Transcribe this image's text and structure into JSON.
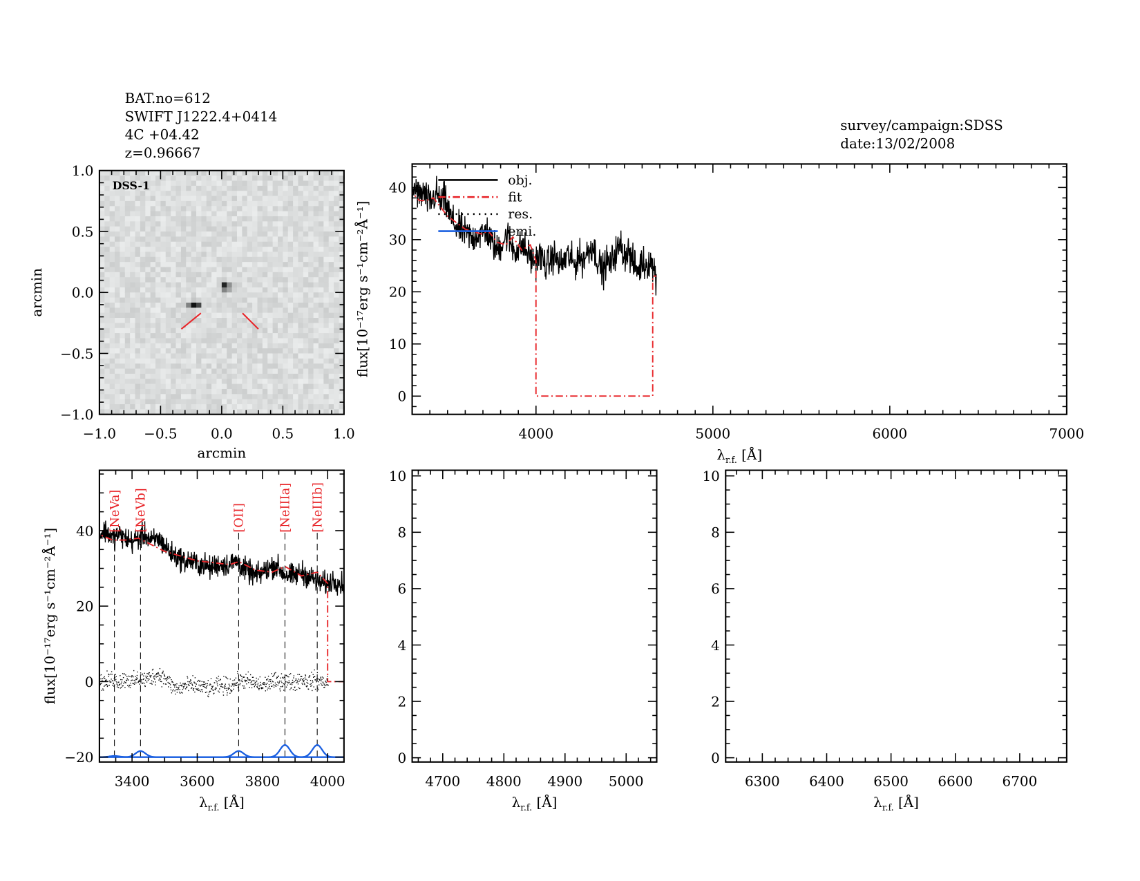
{
  "header": {
    "left_lines": [
      "BAT.no=612",
      "SWIFT J1222.4+0414",
      "4C +04.42",
      "z=0.96667"
    ],
    "right_lines": [
      "survey/campaign:SDSS",
      "date:13/02/2008"
    ]
  },
  "colors": {
    "obj": "#000000",
    "fit": "#e8262a",
    "res": "#000000",
    "emi": "#1a5fe0",
    "marker": "#e8262a"
  },
  "chart_data": [
    {
      "id": "image",
      "type": "heatmap",
      "inset_label": "DSS-1",
      "xlabel": "arcmin",
      "ylabel": "arcmin",
      "xlim": [
        -1.0,
        1.0
      ],
      "ylim": [
        -1.0,
        1.0
      ],
      "xticks": [
        "-1.0",
        "-0.5",
        "0.0",
        "0.5",
        "1.0"
      ],
      "yticks": [
        "-1.0",
        "-0.5",
        "0.0",
        "0.5",
        "1.0"
      ],
      "colormap": "grayscale",
      "sources": [
        {
          "x": 0.03,
          "y": 0.05,
          "intensity": "bright"
        },
        {
          "x": -0.22,
          "y": -0.1,
          "intensity": "faint"
        }
      ],
      "markers": [
        [
          [
            -0.33,
            -0.3
          ],
          [
            -0.17,
            -0.17
          ]
        ],
        [
          [
            0.17,
            -0.17
          ],
          [
            0.3,
            -0.3
          ]
        ]
      ]
    },
    {
      "id": "full-spectrum",
      "type": "line",
      "xlabel": {
        "main": "λ",
        "sub": "r.f.",
        "unit": "[Å]"
      },
      "ylabel": "flux[10⁻¹⁷erg s⁻¹cm⁻²Å⁻¹]",
      "xlim": [
        3300,
        7000
      ],
      "ylim": [
        -3.5,
        44.5
      ],
      "xticks": [
        4000,
        5000,
        6000,
        7000
      ],
      "yticks": [
        0,
        10,
        20,
        30,
        40
      ],
      "legend": {
        "position": "top-left",
        "entries": [
          "obj.",
          "fit",
          "res.",
          "emi."
        ]
      },
      "obj": {
        "x_start": 3300,
        "x_step": 20,
        "y": [
          39,
          40,
          38,
          39,
          38,
          37,
          38,
          39,
          37,
          38,
          36,
          34,
          33,
          32,
          32,
          31,
          31,
          30,
          31,
          31,
          31,
          32,
          30,
          29,
          28,
          29,
          30,
          31,
          29,
          28,
          28,
          29,
          28,
          27,
          26,
          26,
          27,
          26,
          25,
          26,
          27,
          26,
          25,
          26,
          27,
          26,
          25,
          27,
          26,
          27,
          28,
          29,
          27,
          25,
          24,
          26,
          25,
          27,
          28,
          29,
          27,
          28,
          26,
          25,
          24,
          26,
          25,
          26,
          25,
          23
        ]
      },
      "fit": [
        [
          3300,
          10
        ],
        [
          3300,
          39
        ],
        [
          3340,
          37.5
        ],
        [
          3380,
          37.5
        ],
        [
          3420,
          38
        ],
        [
          3500,
          34.5
        ],
        [
          3600,
          32
        ],
        [
          3700,
          31
        ],
        [
          3727,
          31.8
        ],
        [
          3780,
          29.5
        ],
        [
          3830,
          29
        ],
        [
          3869,
          30.5
        ],
        [
          3920,
          28
        ],
        [
          3968,
          29
        ],
        [
          4000,
          26
        ],
        [
          4000,
          0
        ],
        [
          4660,
          0
        ],
        [
          4660,
          23
        ],
        [
          4680,
          23
        ]
      ]
    },
    {
      "id": "zoom-3300-4050",
      "type": "line",
      "xlabel": {
        "main": "λ",
        "sub": "r.f.",
        "unit": "[Å]"
      },
      "ylabel": "flux[10⁻¹⁷erg s⁻¹cm⁻²Å⁻¹]",
      "xlim": [
        3300,
        4050
      ],
      "ylim": [
        -21.3,
        56
      ],
      "xticks": [
        3400,
        3600,
        3800,
        4000
      ],
      "yticks": [
        -20,
        0,
        20,
        40
      ],
      "lines": [
        {
          "label": "[NeVa]",
          "wavelength": 3346,
          "emi_amp": 0.3
        },
        {
          "label": "[NeVb]",
          "wavelength": 3426,
          "emi_amp": 1.6
        },
        {
          "label": "[OII]",
          "wavelength": 3727,
          "emi_amp": 1.6
        },
        {
          "label": "[NeIIIa]",
          "wavelength": 3869,
          "emi_amp": 3.2
        },
        {
          "label": "[NeIIIb]",
          "wavelength": 3968,
          "emi_amp": 3.2
        }
      ],
      "emi_baseline": -20,
      "emi_sigma_A": 15,
      "residual": {
        "x_start": 3300,
        "x_step": 20,
        "y": [
          0,
          0,
          1,
          0,
          1,
          0,
          1,
          0.5,
          1.5,
          2,
          1,
          -1,
          -2,
          -1,
          -1,
          -1,
          -1.5,
          -2,
          -1,
          -1,
          -1,
          0,
          0.5,
          0,
          -0.5,
          -1,
          0,
          0,
          0.5,
          0,
          0,
          1,
          0,
          0.5,
          0,
          0
        ]
      },
      "fit_extra": [
        [
          4000,
          0
        ],
        [
          4050,
          0
        ]
      ]
    },
    {
      "id": "zoom-4650-5050",
      "type": "line",
      "xlabel": {
        "main": "λ",
        "sub": "r.f.",
        "unit": "[Å]"
      },
      "xlim": [
        4650,
        5050
      ],
      "ylim": [
        -0.15,
        10.2
      ],
      "xticks": [
        4700,
        4800,
        4900,
        5000
      ],
      "yticks": [
        0,
        2,
        4,
        6,
        8,
        10
      ]
    },
    {
      "id": "zoom-6250-6770",
      "type": "line",
      "xlabel": {
        "main": "λ",
        "sub": "r.f.",
        "unit": "[Å]"
      },
      "xlim": [
        6243,
        6773
      ],
      "ylim": [
        -0.15,
        10.2
      ],
      "xticks": [
        6300,
        6400,
        6500,
        6600,
        6700
      ],
      "yticks": [
        0,
        2,
        4,
        6,
        8,
        10
      ]
    }
  ]
}
